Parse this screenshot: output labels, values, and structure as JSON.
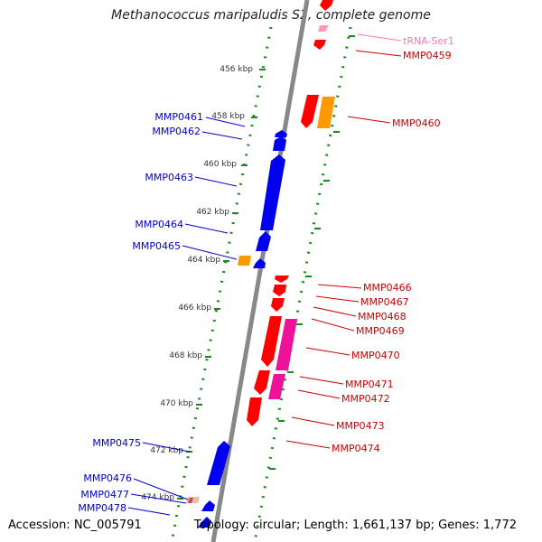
{
  "title": "Methanococcus maripaludis S2, complete genome",
  "accession": "Accession: NC_005791",
  "topology": "Topology: circular; Length: 1,661,137 bp; Genes: 1,772",
  "colors": {
    "backbone": "#888888",
    "ruler": "#1a8a1a",
    "left_label": "#0000cc",
    "right_label": "#cc0000",
    "trna_label": "#ff77aa",
    "gene_blue": "#0000ee",
    "gene_red": "#ff0000",
    "gene_orange": "#ff9900",
    "gene_magenta": "#ee1199",
    "gene_pink": "#ff99bb"
  },
  "ruler_ticks": [
    "456 kbp",
    "458 kbp",
    "460 kbp",
    "462 kbp",
    "464 kbp",
    "466 kbp",
    "468 kbp",
    "470 kbp",
    "472 kbp",
    "474 kbp"
  ],
  "left_labels": [
    "MMP0461",
    "MMP0462",
    "MMP0463",
    "MMP0464",
    "MMP0465",
    "MMP0475",
    "MMP0476",
    "MMP0477",
    "MMP0478"
  ],
  "right_labels": [
    "tRNA-Ser1",
    "MMP0459",
    "MMP0460",
    "MMP0466",
    "MMP0467",
    "MMP0468",
    "MMP0469",
    "MMP0470",
    "MMP0471",
    "MMP0472",
    "MMP0473",
    "MMP0474"
  ]
}
